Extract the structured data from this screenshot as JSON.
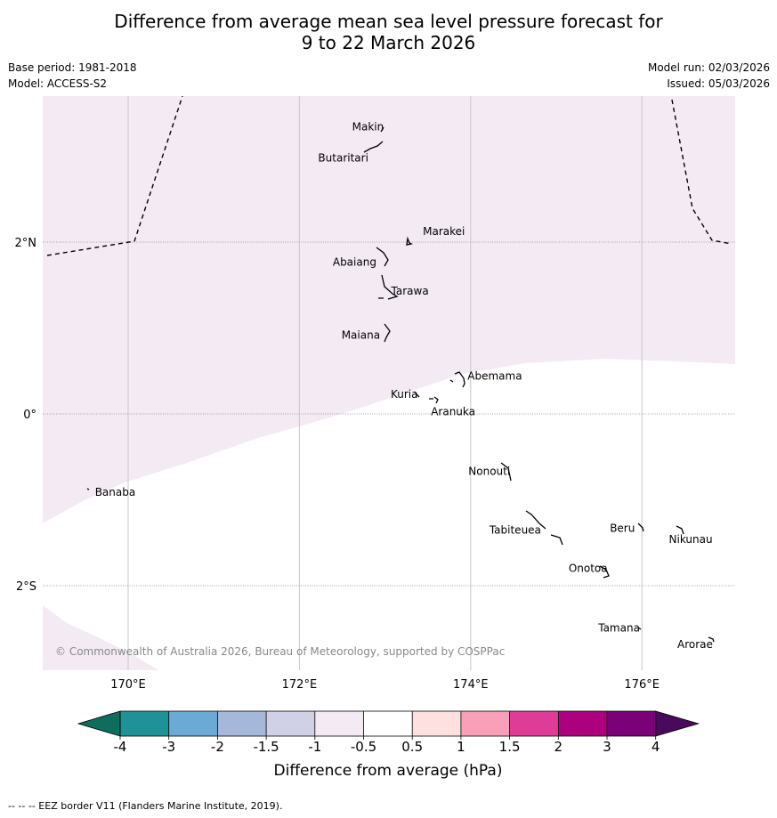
{
  "title": {
    "line1": "Difference from average mean sea level pressure forecast for",
    "line2": "9 to 22 March 2026"
  },
  "info": {
    "base_period": "Base period: 1981-2018",
    "model": "Model: ACCESS-S2",
    "model_run": "Model run: 02/03/2026",
    "issued": "Issued: 05/03/2026"
  },
  "map": {
    "lon_range": [
      169,
      177.1
    ],
    "lat_range": [
      -3.0,
      3.7
    ],
    "lon_ticks": [
      {
        "value": 170,
        "label": "170°E"
      },
      {
        "value": 172,
        "label": "172°E"
      },
      {
        "value": 174,
        "label": "174°E"
      },
      {
        "value": 176,
        "label": "176°E"
      }
    ],
    "lat_ticks": [
      {
        "value": 2,
        "label": "2°N"
      },
      {
        "value": 0,
        "label": "0°"
      },
      {
        "value": -2,
        "label": "2°S"
      }
    ],
    "shaded_class": "-1 to -0.5",
    "shaded_color": "#f3eaf4",
    "islands": [
      {
        "name": "Makin",
        "lon": 172.99,
        "lat": 3.33
      },
      {
        "name": "Butaritari",
        "lon": 172.78,
        "lat": 3.03
      },
      {
        "name": "Marakei",
        "lon": 173.38,
        "lat": 2.04
      },
      {
        "name": "Abaiang",
        "lon": 172.93,
        "lat": 1.8
      },
      {
        "name": "Tarawa",
        "lon": 173.01,
        "lat": 1.43
      },
      {
        "name": "Maiana",
        "lon": 172.97,
        "lat": 0.95
      },
      {
        "name": "Abemama",
        "lon": 173.88,
        "lat": 0.4
      },
      {
        "name": "Kuria",
        "lon": 173.42,
        "lat": 0.23
      },
      {
        "name": "Aranuka",
        "lon": 173.63,
        "lat": 0.17
      },
      {
        "name": "Banaba",
        "lon": 169.55,
        "lat": -0.86
      },
      {
        "name": "Nonouti",
        "lon": 174.4,
        "lat": -0.67
      },
      {
        "name": "Tabiteuea",
        "lon": 174.78,
        "lat": -1.35
      },
      {
        "name": "Beru",
        "lon": 176.0,
        "lat": -1.33
      },
      {
        "name": "Nikunau",
        "lon": 176.44,
        "lat": -1.36
      },
      {
        "name": "Onotoa",
        "lon": 175.57,
        "lat": -1.8
      },
      {
        "name": "Tamana",
        "lon": 175.99,
        "lat": -2.5
      },
      {
        "name": "Arorae",
        "lon": 176.83,
        "lat": -2.64
      }
    ],
    "copyright": "© Commonwealth of Australia 2026, Bureau of Meteorology, supported by COSPPac"
  },
  "colorbar": {
    "label": "Difference from average (hPa)",
    "ticks": [
      "-4",
      "-3",
      "-2",
      "-1.5",
      "-1",
      "-0.5",
      "0.5",
      "1",
      "1.5",
      "2",
      "3",
      "4"
    ],
    "under_color": "#0e6e5e",
    "over_color": "#4a0a5c",
    "colors": [
      "#1e9296",
      "#6aaad4",
      "#a6b8da",
      "#d0d0e6",
      "#f3eaf4",
      "#ffffff",
      "#fde0df",
      "#f99fb8",
      "#de3c96",
      "#ad007e",
      "#7a0177"
    ]
  },
  "footnote": "--  --  -- EEZ border V11 (Flanders Marine Institute, 2019)."
}
